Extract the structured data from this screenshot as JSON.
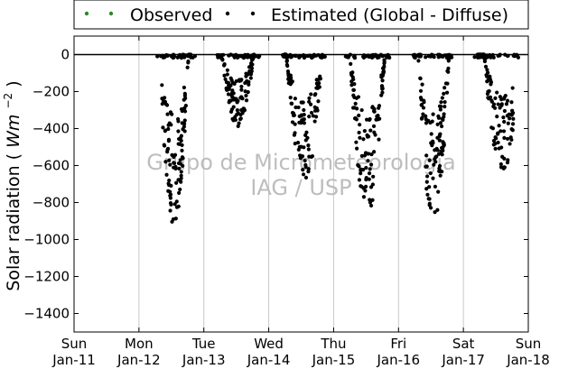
{
  "chart_data": {
    "type": "scatter",
    "title": "",
    "xlabel": "",
    "ylabel": "Solar radiation",
    "ylabel_unit": "Wm",
    "ylabel_exp": "−2",
    "ylim": [
      -1500,
      100
    ],
    "yticks": [
      0,
      -200,
      -400,
      -600,
      -800,
      -1000,
      -1200,
      -1400
    ],
    "ytick_labels": [
      "0",
      "−200",
      "−400",
      "−600",
      "−800",
      "−1000",
      "−1200",
      "−1400"
    ],
    "xlim": [
      0,
      7
    ],
    "x_unit": "days since Sun Jan-11",
    "xtick_labels": [
      {
        "day": "Sun",
        "date": "Jan-11"
      },
      {
        "day": "Mon",
        "date": "Jan-12"
      },
      {
        "day": "Tue",
        "date": "Jan-13"
      },
      {
        "day": "Wed",
        "date": "Jan-14"
      },
      {
        "day": "Thu",
        "date": "Jan-15"
      },
      {
        "day": "Fri",
        "date": "Jan-16"
      },
      {
        "day": "Sat",
        "date": "Jan-17"
      },
      {
        "day": "Sun",
        "date": "Jan-18"
      }
    ],
    "grid": "vertical",
    "legend_position": "top",
    "reference_line_y": 0,
    "series": [
      {
        "name": "Observed",
        "color": "#2a8a2a",
        "points": []
      },
      {
        "name": "Estimated (Global - Diffuse)",
        "color": "#000000",
        "points": []
      }
    ],
    "daily_envelopes": [
      {
        "day_index": 1,
        "start": 1.35,
        "end": 1.8,
        "peak_at": 1.54,
        "min": -930
      },
      {
        "day_index": 2,
        "start": 2.28,
        "end": 2.78,
        "peak_at": 2.52,
        "min": -390
      },
      {
        "day_index": 3,
        "start": 3.24,
        "end": 3.8,
        "peak_at": 3.55,
        "min": -700
      },
      {
        "day_index": 4,
        "start": 4.26,
        "end": 4.8,
        "peak_at": 4.52,
        "min": -880
      },
      {
        "day_index": 5,
        "start": 5.3,
        "end": 5.78,
        "peak_at": 5.54,
        "min": -920
      },
      {
        "day_index": 6,
        "start": 6.22,
        "end": 6.78,
        "peak_at": 6.6,
        "min": -640
      }
    ],
    "watermark_lines": [
      "Grupo de Micrometeorologia",
      "IAG / USP"
    ]
  }
}
